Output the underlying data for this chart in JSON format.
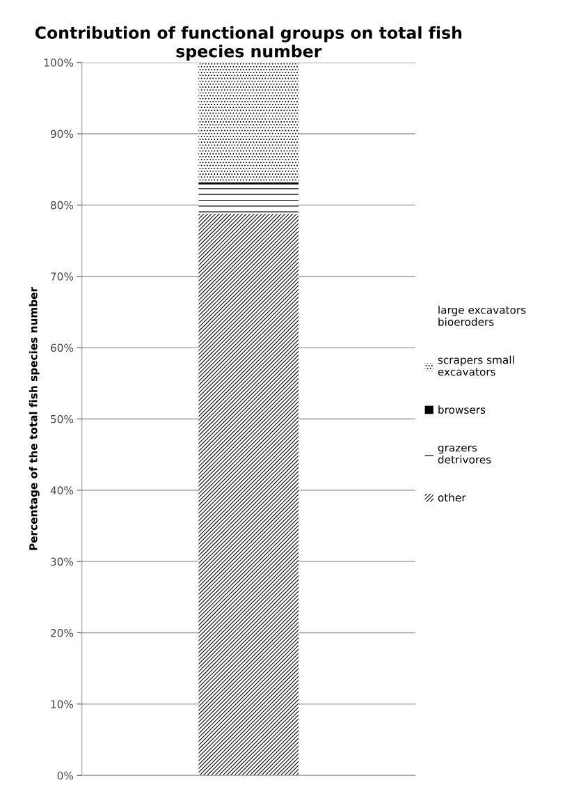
{
  "chart_data": {
    "type": "bar",
    "stacked": true,
    "title": "Contribution of functional groups on total fish species number",
    "ylabel": "Percentage of the total fish species number",
    "categories": [
      null
    ],
    "series": [
      {
        "name": "other",
        "color": "#000000",
        "values": [
          78.8
        ]
      },
      {
        "name": "grazers detrivores",
        "color": "#000000",
        "values": [
          4.1
        ]
      },
      {
        "name": "browsers",
        "color": "#000000",
        "values": [
          0.3
        ]
      },
      {
        "name": "scrapers small excavators",
        "color": "#000000",
        "values": [
          16.8
        ]
      },
      {
        "name": "large excavators bioeroders",
        "color": "#000000",
        "values": [
          0
        ]
      }
    ],
    "ylim": [
      0,
      100
    ],
    "yticks": [
      {
        "value": 0,
        "label": "0%"
      },
      {
        "value": 10,
        "label": "10%"
      },
      {
        "value": 20,
        "label": "20%"
      },
      {
        "value": 30,
        "label": "30%"
      },
      {
        "value": 40,
        "label": "40%"
      },
      {
        "value": 50,
        "label": "50%"
      },
      {
        "value": 60,
        "label": "60%"
      },
      {
        "value": 70,
        "label": "70%"
      },
      {
        "value": 80,
        "label": "80%"
      },
      {
        "value": 90,
        "label": "90%"
      },
      {
        "value": 100,
        "label": "100%"
      }
    ],
    "grid": "y",
    "legend": "right"
  }
}
